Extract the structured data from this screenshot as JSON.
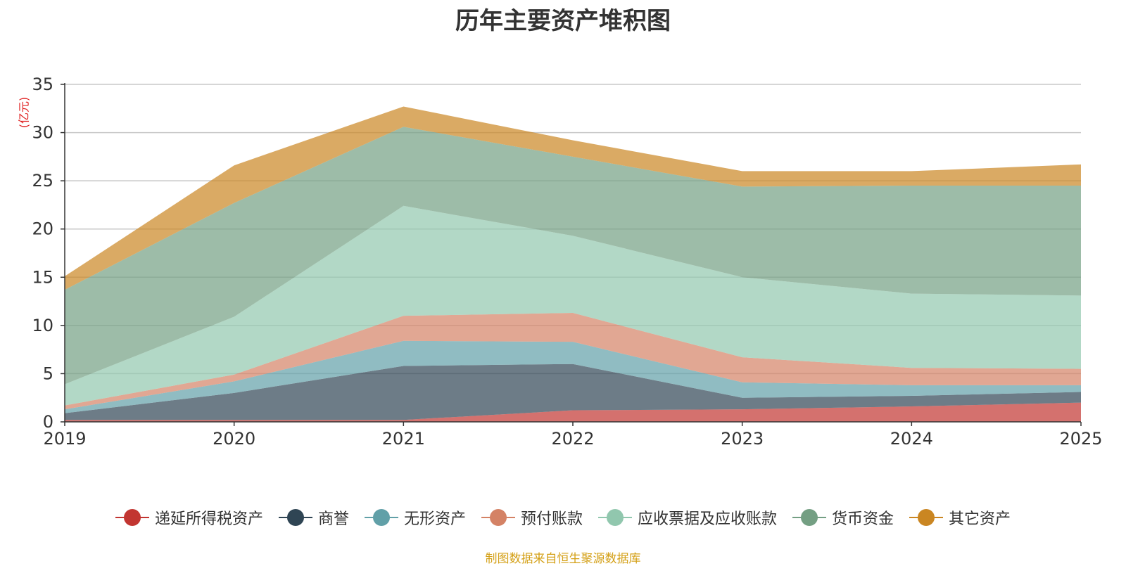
{
  "chart_data": {
    "type": "area",
    "stacked": true,
    "title": "历年主要资产堆积图",
    "ylabel": "(亿元)",
    "xlabel": "",
    "categories": [
      "2019",
      "2020",
      "2021",
      "2022",
      "2023",
      "2024",
      "2025"
    ],
    "ylim": [
      0,
      35
    ],
    "yticks": [
      0,
      5,
      10,
      15,
      20,
      25,
      30,
      35
    ],
    "grid": true,
    "legend_position": "bottom",
    "series": [
      {
        "name": "递延所得税资产",
        "color": "#c23531",
        "values": [
          0.2,
          0.2,
          0.2,
          1.2,
          1.3,
          1.6,
          2.0
        ]
      },
      {
        "name": "商誉",
        "color": "#2f4554",
        "values": [
          0.7,
          2.8,
          5.6,
          4.8,
          1.2,
          1.1,
          1.1
        ]
      },
      {
        "name": "无形资产",
        "color": "#61a0a8",
        "values": [
          0.4,
          1.2,
          2.6,
          2.3,
          1.6,
          1.1,
          0.7
        ]
      },
      {
        "name": "预付账款",
        "color": "#d48265",
        "values": [
          0.4,
          0.7,
          2.6,
          3.0,
          2.6,
          1.8,
          1.7
        ]
      },
      {
        "name": "应收票据及应收账款",
        "color": "#91c7ae",
        "values": [
          2.2,
          6.0,
          11.4,
          8.0,
          8.3,
          7.7,
          7.6
        ]
      },
      {
        "name": "货币资金",
        "color": "#749f83",
        "values": [
          9.8,
          11.8,
          8.2,
          8.2,
          9.4,
          11.2,
          11.4
        ]
      },
      {
        "name": "其它资产",
        "color": "#ca8622",
        "values": [
          1.4,
          3.9,
          2.1,
          1.7,
          1.6,
          1.5,
          2.2
        ]
      }
    ]
  },
  "source_note": "制图数据来自恒生聚源数据库"
}
